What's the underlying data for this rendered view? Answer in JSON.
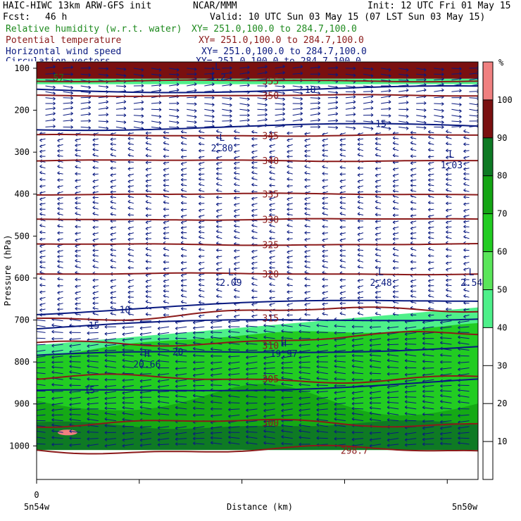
{
  "header": {
    "model": "HAIC-HIWC 13km ARW-GFS init",
    "center": "NCAR/MMM",
    "init": "Init: 12 UTC Fri 01 May 15",
    "fcst_label": "Fcst:",
    "fcst_value": "46 h",
    "valid": "Valid: 10 UTC Sun 03 May 15 (07 LST Sun 03 May 15)"
  },
  "fields": [
    {
      "name": "Relative humidity (w.r.t. water)",
      "xy": "XY= 251.0,100.0 to 284.7,100.0",
      "color": "#1e8a1e"
    },
    {
      "name": "Potential temperature",
      "xy": "XY= 251.0,100.0 to 284.7,100.0",
      "color": "#8b1a1a"
    },
    {
      "name": "Horizontal wind speed",
      "xy": "XY= 251.0,100.0 to 284.7,100.0",
      "color": "#0a1a80"
    },
    {
      "name": "Circulation vectors",
      "xy": "XY= 251.0,100.0 to 284.7,100.0",
      "color": "#0a1a80"
    }
  ],
  "axes": {
    "ylabel": "Pressure (hPa)",
    "xlabel": "Distance (km)",
    "x_left": "5n54w",
    "x_right": "5n50w",
    "x_zero": "0"
  },
  "colorbar": {
    "unit": "%",
    "levels": [
      10,
      20,
      30,
      40,
      50,
      60,
      70,
      80,
      90,
      100
    ],
    "colors": [
      "#ffffff",
      "#4ef08a",
      "#5ae65a",
      "#22cc22",
      "#14a514",
      "#0e7a24",
      "#7a1010",
      "#f08080"
    ]
  },
  "chart_data": {
    "type": "contour",
    "y_axis": {
      "label": "Pressure (hPa)",
      "range": [
        1080,
        85
      ],
      "ticks": [
        100,
        200,
        300,
        400,
        500,
        600,
        700,
        800,
        900,
        1000
      ]
    },
    "x_axis": {
      "label": "Distance (km)",
      "tick_labels": [
        "0"
      ],
      "endpoint_labels": [
        "5n54w",
        "5n50w"
      ]
    },
    "potential_temperature": {
      "unit": "K",
      "contours": [
        {
          "value": 298.7,
          "pressure": 1010
        },
        {
          "value": 300,
          "pressure": 945
        },
        {
          "value": 305,
          "pressure": 840
        },
        {
          "value": 310,
          "pressure": 760
        },
        {
          "value": 315,
          "pressure": 695
        },
        {
          "value": 320,
          "pressure": 590
        },
        {
          "value": 325,
          "pressure": 520
        },
        {
          "value": 330,
          "pressure": 460
        },
        {
          "value": 335,
          "pressure": 400
        },
        {
          "value": 340,
          "pressure": 320
        },
        {
          "value": 345,
          "pressure": 260
        },
        {
          "value": 350,
          "pressure": 165
        },
        {
          "value": 355,
          "pressure": 130
        }
      ]
    },
    "wind_speed": {
      "contours": [
        {
          "value": 10,
          "pressure": 150
        },
        {
          "value": 15,
          "pressure": 240
        },
        {
          "value": 10,
          "pressure": 680
        },
        {
          "value": 15,
          "pressure": 720
        },
        {
          "value": 20,
          "pressure": 790
        },
        {
          "value": 15,
          "pressure": 875
        }
      ],
      "extrema": [
        {
          "type": "L",
          "value": "2.80",
          "pressure": 280,
          "frac": 0.42
        },
        {
          "type": "L",
          "value": "1.03",
          "pressure": 320,
          "frac": 0.94
        },
        {
          "type": "L",
          "value": "2.09",
          "pressure": 600,
          "frac": 0.44
        },
        {
          "type": "L",
          "value": "2.48",
          "pressure": 600,
          "frac": 0.78
        },
        {
          "type": "L",
          "value": "2.54",
          "pressure": 600,
          "frac": 0.99
        },
        {
          "type": "L",
          "value": "1.2",
          "pressure": 110,
          "frac": 0.41
        },
        {
          "type": "H",
          "value": "20.66",
          "pressure": 795,
          "frac": 0.25
        },
        {
          "type": "H",
          "value": "19.97",
          "pressure": 770,
          "frac": 0.56
        }
      ]
    },
    "relative_humidity": {
      "unit": "%",
      "levels": [
        10,
        20,
        30,
        40,
        50,
        60,
        70,
        80,
        90,
        100
      ],
      "label": "57",
      "regions": [
        {
          "from": 85,
          "to": 125,
          "min_rh": 90
        },
        {
          "from": 125,
          "to": 138,
          "min_rh": 50
        },
        {
          "from": 760,
          "to": 1010,
          "min_rh": 50
        },
        {
          "from": 890,
          "to": 990,
          "min_rh": 80
        }
      ]
    }
  }
}
